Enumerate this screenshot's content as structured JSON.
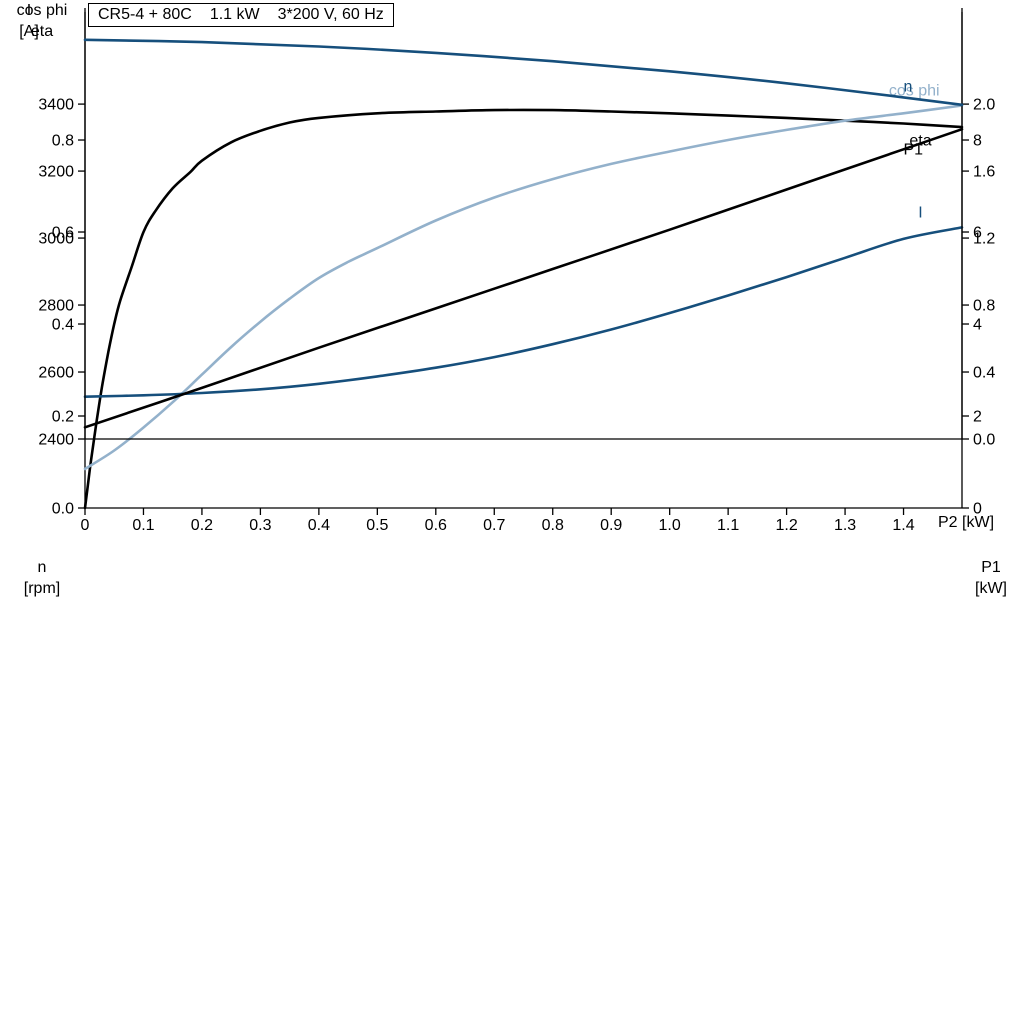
{
  "chart_data": [
    {
      "type": "line",
      "title": "CR5-4 + 80C  1.1 kW  3*200 V, 60 Hz",
      "title_parts": [
        "CR5-4 + 80C",
        "1.1 kW",
        "3*200 V, 60 Hz"
      ],
      "grid": false,
      "x": {
        "min": 0,
        "max": 1.5,
        "label": "P2 [kW]",
        "ticks": [
          {
            "label": "0",
            "v": 0
          },
          {
            "label": "0.1",
            "v": 0.1
          },
          {
            "label": "0.2",
            "v": 0.2
          },
          {
            "label": "0.3",
            "v": 0.3
          },
          {
            "label": "0.4",
            "v": 0.4
          },
          {
            "label": "0.5",
            "v": 0.5
          },
          {
            "label": "0.6",
            "v": 0.6
          },
          {
            "label": "0.7",
            "v": 0.7
          },
          {
            "label": "0.8",
            "v": 0.8
          },
          {
            "label": "0.9",
            "v": 0.9
          },
          {
            "label": "1.0",
            "v": 1.0
          },
          {
            "label": "1.1",
            "v": 1.1
          },
          {
            "label": "1.2",
            "v": 1.2
          },
          {
            "label": "1.3",
            "v": 1.3
          },
          {
            "label": "1.4",
            "v": 1.4
          }
        ]
      },
      "y_left": {
        "min": 0,
        "max": 1.087,
        "label_lines": [
          "cos phi",
          "eta"
        ],
        "ticks": [
          {
            "label": "0.0",
            "v": 0.0
          },
          {
            "label": "0.2",
            "v": 0.2
          },
          {
            "label": "0.4",
            "v": 0.4
          },
          {
            "label": "0.6",
            "v": 0.6
          },
          {
            "label": "0.8",
            "v": 0.8
          }
        ]
      },
      "y_right": {
        "min": 0,
        "max": 10.87,
        "label_lines": [
          "I",
          "[A]"
        ],
        "ticks": [
          {
            "label": "0",
            "v": 0
          },
          {
            "label": "2",
            "v": 2
          },
          {
            "label": "4",
            "v": 4
          },
          {
            "label": "6",
            "v": 6
          },
          {
            "label": "8",
            "v": 8
          }
        ]
      },
      "series": [
        {
          "name": "eta",
          "axis": "left",
          "color": "#000000",
          "label_at": [
            1.41,
            0.788
          ],
          "points": [
            [
              0,
              0
            ],
            [
              0.005,
              0.05
            ],
            [
              0.01,
              0.1
            ],
            [
              0.02,
              0.19
            ],
            [
              0.03,
              0.27
            ],
            [
              0.04,
              0.34
            ],
            [
              0.05,
              0.4
            ],
            [
              0.06,
              0.45
            ],
            [
              0.08,
              0.525
            ],
            [
              0.1,
              0.6
            ],
            [
              0.12,
              0.645
            ],
            [
              0.15,
              0.695
            ],
            [
              0.18,
              0.73
            ],
            [
              0.2,
              0.755
            ],
            [
              0.25,
              0.795
            ],
            [
              0.3,
              0.82
            ],
            [
              0.35,
              0.838
            ],
            [
              0.4,
              0.848
            ],
            [
              0.5,
              0.858
            ],
            [
              0.6,
              0.862
            ],
            [
              0.7,
              0.865
            ],
            [
              0.8,
              0.865
            ],
            [
              0.9,
              0.862
            ],
            [
              1.0,
              0.858
            ],
            [
              1.1,
              0.853
            ],
            [
              1.2,
              0.848
            ],
            [
              1.3,
              0.842
            ],
            [
              1.4,
              0.836
            ],
            [
              1.5,
              0.828
            ]
          ]
        },
        {
          "name": "cos phi",
          "axis": "left",
          "color": "#93b1cb",
          "label_at": [
            1.375,
            0.897
          ],
          "points": [
            [
              0,
              0.085
            ],
            [
              0.05,
              0.125
            ],
            [
              0.1,
              0.175
            ],
            [
              0.15,
              0.23
            ],
            [
              0.2,
              0.29
            ],
            [
              0.25,
              0.35
            ],
            [
              0.3,
              0.405
            ],
            [
              0.35,
              0.455
            ],
            [
              0.4,
              0.5
            ],
            [
              0.45,
              0.535
            ],
            [
              0.5,
              0.565
            ],
            [
              0.6,
              0.625
            ],
            [
              0.7,
              0.675
            ],
            [
              0.8,
              0.715
            ],
            [
              0.9,
              0.748
            ],
            [
              1.0,
              0.775
            ],
            [
              1.1,
              0.8
            ],
            [
              1.2,
              0.822
            ],
            [
              1.3,
              0.842
            ],
            [
              1.4,
              0.858
            ],
            [
              1.5,
              0.875
            ]
          ]
        },
        {
          "name": "I",
          "axis": "right",
          "color": "#164f7c",
          "label_at": [
            1.425,
            6.32
          ],
          "points": [
            [
              0,
              2.42
            ],
            [
              0.1,
              2.45
            ],
            [
              0.2,
              2.5
            ],
            [
              0.3,
              2.58
            ],
            [
              0.4,
              2.7
            ],
            [
              0.5,
              2.86
            ],
            [
              0.6,
              3.05
            ],
            [
              0.7,
              3.28
            ],
            [
              0.8,
              3.56
            ],
            [
              0.9,
              3.88
            ],
            [
              1.0,
              4.24
            ],
            [
              1.1,
              4.62
            ],
            [
              1.2,
              5.02
            ],
            [
              1.3,
              5.44
            ],
            [
              1.4,
              5.85
            ],
            [
              1.5,
              6.1
            ]
          ]
        }
      ]
    },
    {
      "type": "line",
      "title": "",
      "grid": false,
      "x": {
        "min": 0,
        "max": 1.5,
        "label": "",
        "ticks": []
      },
      "y_left": {
        "min": 2400,
        "max": 3675,
        "label_lines": [
          "n",
          "[rpm]"
        ],
        "ticks": [
          {
            "label": "2400",
            "v": 2400
          },
          {
            "label": "2600",
            "v": 2600
          },
          {
            "label": "2800",
            "v": 2800
          },
          {
            "label": "3000",
            "v": 3000
          },
          {
            "label": "3200",
            "v": 3200
          },
          {
            "label": "3400",
            "v": 3400
          }
        ]
      },
      "y_right": {
        "min": 0,
        "max": 2.55,
        "label_lines": [
          "P1",
          "[kW]"
        ],
        "ticks": [
          {
            "label": "0.0",
            "v": 0.0
          },
          {
            "label": "0.4",
            "v": 0.4
          },
          {
            "label": "0.8",
            "v": 0.8
          },
          {
            "label": "1.2",
            "v": 1.2
          },
          {
            "label": "1.6",
            "v": 1.6
          },
          {
            "label": "2.0",
            "v": 2.0
          }
        ]
      },
      "series": [
        {
          "name": "n",
          "axis": "left",
          "color": "#164f7c",
          "label_at": [
            1.4,
            3437
          ],
          "points": [
            [
              0,
              3592
            ],
            [
              0.2,
              3585
            ],
            [
              0.4,
              3572
            ],
            [
              0.6,
              3553
            ],
            [
              0.8,
              3528
            ],
            [
              1.0,
              3498
            ],
            [
              1.2,
              3462
            ],
            [
              1.4,
              3420
            ],
            [
              1.5,
              3398
            ]
          ]
        },
        {
          "name": "P1",
          "axis": "right",
          "color": "#000000",
          "label_at": [
            1.4,
            1.7
          ],
          "points": [
            [
              0,
              0.07
            ],
            [
              0.2,
              0.305
            ],
            [
              0.4,
              0.545
            ],
            [
              0.6,
              0.78
            ],
            [
              0.8,
              1.015
            ],
            [
              1.0,
              1.25
            ],
            [
              1.2,
              1.49
            ],
            [
              1.4,
              1.73
            ],
            [
              1.5,
              1.85
            ]
          ]
        }
      ]
    }
  ]
}
